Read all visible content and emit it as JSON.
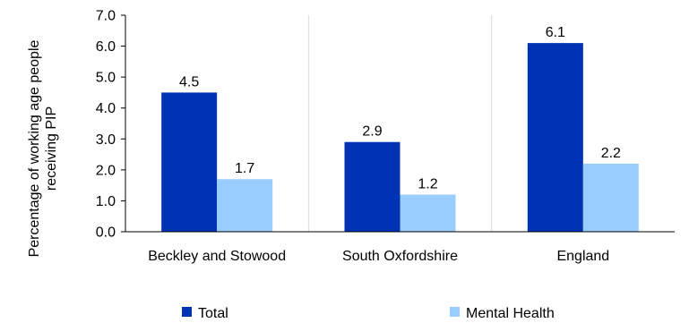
{
  "chart_data": {
    "type": "bar",
    "title": "",
    "xlabel": "",
    "ylabel": "Percentage of working age people receiving PIP",
    "ylim": [
      0,
      7
    ],
    "yticks": [
      "0.0",
      "1.0",
      "2.0",
      "3.0",
      "4.0",
      "5.0",
      "6.0",
      "7.0"
    ],
    "categories": [
      "Beckley and Stowood",
      "South Oxfordshire",
      "England"
    ],
    "series": [
      {
        "name": "Total",
        "values": [
          4.5,
          2.9,
          6.1
        ],
        "labels": [
          "4.5",
          "2.9",
          "6.1"
        ],
        "color": "#0033b3"
      },
      {
        "name": "Mental Health",
        "values": [
          1.7,
          1.2,
          2.2
        ],
        "labels": [
          "1.7",
          "1.2",
          "2.2"
        ],
        "color": "#99ccff"
      }
    ],
    "grid": true,
    "legend_position": "bottom"
  }
}
